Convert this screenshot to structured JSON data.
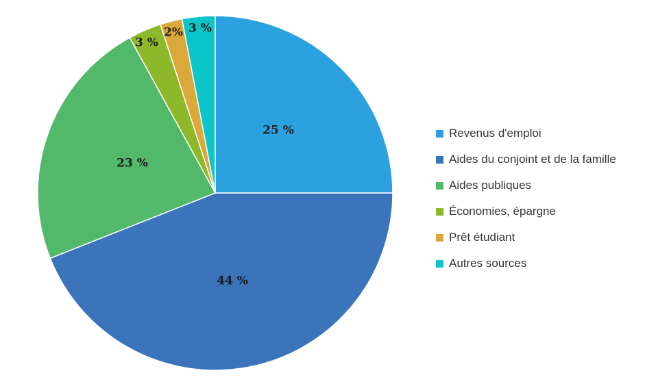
{
  "chart_data": {
    "type": "pie",
    "start_angle_deg": 0,
    "direction": "clockwise",
    "slices": [
      {
        "label": "Revenus d'emploi",
        "value": 25,
        "display": "25 %",
        "color": "#2CA1E0"
      },
      {
        "label": "Aides du conjoint et de la famille",
        "value": 44,
        "display": "44 %",
        "color": "#3C74BC"
      },
      {
        "label": "Aides publiques",
        "value": 23,
        "display": "23 %",
        "color": "#52B86A"
      },
      {
        "label": "Économies, épargne",
        "value": 3,
        "display": "3 %",
        "color": "#8DB82A"
      },
      {
        "label": "Prêt étudiant",
        "value": 2,
        "display": "2%",
        "color": "#DBA83C"
      },
      {
        "label": "Autres sources",
        "value": 3,
        "display": "3 %",
        "color": "#0CC5C8"
      }
    ],
    "legend_position": "right"
  }
}
